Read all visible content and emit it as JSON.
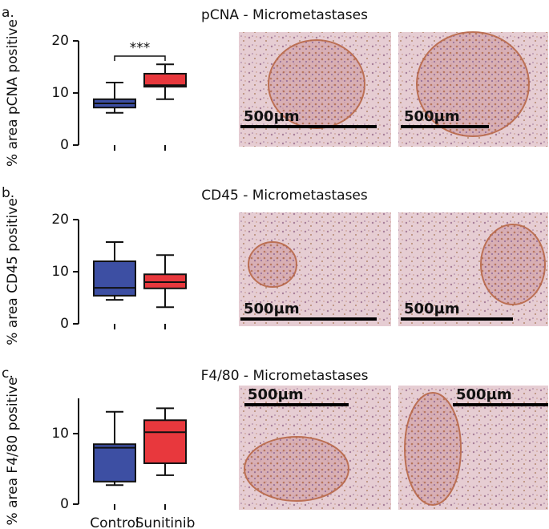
{
  "chart_data": [
    {
      "type": "box",
      "panel_label": "a.",
      "title": "pCNA - Micrometastases",
      "y_label": "% area pCNA positive",
      "categories": [
        null,
        null
      ],
      "ylim": [
        0,
        20
      ],
      "yticks": [
        0,
        10,
        20
      ],
      "annotation": "***",
      "boxes": [
        {
          "color": "#3d4fa3",
          "min": 6.2,
          "q1": 7.2,
          "median": 8.0,
          "q3": 8.8,
          "max": 12
        },
        {
          "color": "#e8383d",
          "min": 8.8,
          "q1": 11.2,
          "median": 11.5,
          "q3": 13.7,
          "max": 15.5
        }
      ],
      "micrographs": [
        {
          "scale_label": "500µm"
        },
        {
          "scale_label": "500µm"
        }
      ]
    },
    {
      "type": "box",
      "panel_label": "b.",
      "title": "CD45 - Micrometastases",
      "y_label": "% area CD45 positive",
      "categories": [
        null,
        null
      ],
      "ylim": [
        0,
        20
      ],
      "yticks": [
        0,
        10,
        20
      ],
      "boxes": [
        {
          "color": "#3d4fa3",
          "min": 4.6,
          "q1": 5.4,
          "median": 6.9,
          "q3": 12,
          "max": 15.7
        },
        {
          "color": "#e8383d",
          "min": 3.2,
          "q1": 6.8,
          "median": 8,
          "q3": 9.5,
          "max": 13.2
        }
      ],
      "micrographs": [
        {
          "scale_label": "500µm"
        },
        {
          "scale_label": "500µm"
        }
      ]
    },
    {
      "type": "box",
      "panel_label": "c.",
      "title": "F4/80 - Micrometastases",
      "y_label": "% area F4/80 positive",
      "categories": [
        "Control",
        "Sunitinib"
      ],
      "ylim": [
        0,
        15
      ],
      "yticks": [
        0,
        10
      ],
      "boxes": [
        {
          "color": "#3d4fa3",
          "min": 2.7,
          "q1": 3.2,
          "median": 8.0,
          "q3": 8.5,
          "max": 13.1
        },
        {
          "color": "#e8383d",
          "min": 4.1,
          "q1": 5.8,
          "median": 10.2,
          "q3": 11.9,
          "max": 13.6
        }
      ],
      "micrographs": [
        {
          "scale_label": "500µm"
        },
        {
          "scale_label": "500µm"
        }
      ]
    }
  ]
}
